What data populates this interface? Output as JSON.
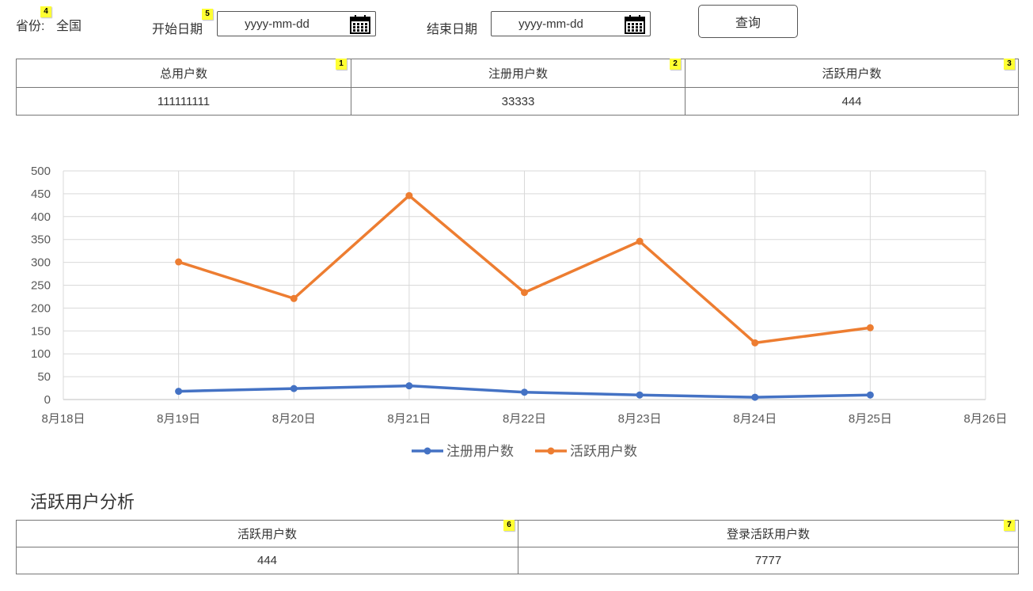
{
  "filters": {
    "province_label": "省份:",
    "province_value": "全国",
    "start_label": "开始日期",
    "start_placeholder": "yyyy-mm-dd",
    "end_label": "结束日期",
    "end_placeholder": "yyyy-mm-dd",
    "query_button": "查询"
  },
  "badges": [
    "1",
    "2",
    "3",
    "4",
    "5",
    "6",
    "7"
  ],
  "summary_table": {
    "headers": [
      "总用户数",
      "注册用户数",
      "活跃用户数"
    ],
    "values": [
      "111111111",
      "33333",
      "444"
    ]
  },
  "chart_data": {
    "type": "line",
    "x": [
      "8月19日",
      "8月20日",
      "8月21日",
      "8月22日",
      "8月23日",
      "8月24日",
      "8月25日"
    ],
    "x_ticks": [
      "8月18日",
      "8月19日",
      "8月20日",
      "8月21日",
      "8月22日",
      "8月23日",
      "8月24日",
      "8月25日",
      "8月26日"
    ],
    "y_ticks": [
      "0",
      "50",
      "100",
      "150",
      "200",
      "250",
      "300",
      "350",
      "400",
      "450",
      "500"
    ],
    "ylim": [
      0,
      500
    ],
    "grid": true,
    "legend_position": "bottom",
    "series": [
      {
        "name": "注册用户数",
        "color": "#4472c4",
        "values": [
          18,
          24,
          30,
          16,
          10,
          5,
          10
        ]
      },
      {
        "name": "活跃用户数",
        "color": "#ed7d31",
        "values": [
          301,
          221,
          446,
          234,
          346,
          124,
          157
        ]
      }
    ]
  },
  "active_section": {
    "title": "活跃用户分析",
    "headers": [
      "活跃用户数",
      "登录活跃用户数"
    ],
    "values": [
      "444",
      "7777"
    ]
  }
}
